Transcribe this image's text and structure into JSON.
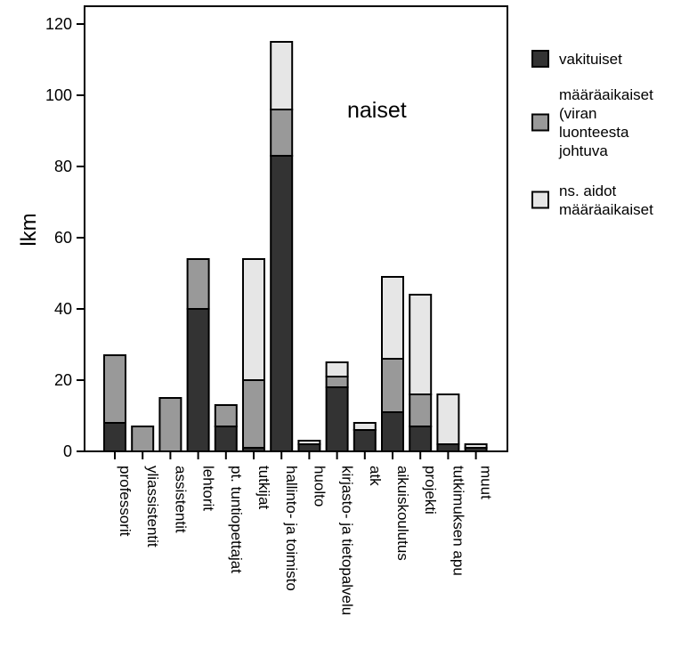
{
  "chart_data": {
    "type": "bar",
    "stacked": true,
    "annotation": "naiset",
    "ylabel": "lkm",
    "xlabel": "",
    "ylim": [
      0,
      125
    ],
    "yticks": [
      0,
      20,
      40,
      60,
      80,
      100,
      120
    ],
    "grid": false,
    "legend_position": "right",
    "categories": [
      "professorit",
      "yliassistentit",
      "assistentit",
      "lehtorit",
      "pt. tuntiopettajat",
      "tutkijat",
      "hallinto- ja toimisto",
      "huolto",
      "kirjasto- ja tietopalvelu",
      "atk",
      "aikuiskoulutus",
      "projekti",
      "tutkimuksen apu",
      "muut"
    ],
    "series": [
      {
        "name": "vakituiset",
        "color": "#333333",
        "legend_lines": [
          "vakituiset"
        ],
        "values": [
          8,
          0,
          0,
          40,
          7,
          1,
          83,
          2,
          18,
          6,
          11,
          7,
          2,
          1
        ]
      },
      {
        "name": "määräaikaiset (viran luonteesta johtuva",
        "color": "#999999",
        "legend_lines": [
          "määräaikaiset",
          "(viran",
          "luonteesta",
          "johtuva"
        ],
        "values": [
          19,
          7,
          15,
          14,
          6,
          19,
          13,
          0,
          3,
          0,
          15,
          9,
          0,
          0
        ]
      },
      {
        "name": "ns. aidot määräaikaiset",
        "color": "#e6e6e6",
        "legend_lines": [
          "ns. aidot",
          "määräaikaiset"
        ],
        "values": [
          0,
          0,
          0,
          0,
          0,
          34,
          19,
          1,
          4,
          2,
          23,
          28,
          14,
          1
        ]
      }
    ]
  }
}
